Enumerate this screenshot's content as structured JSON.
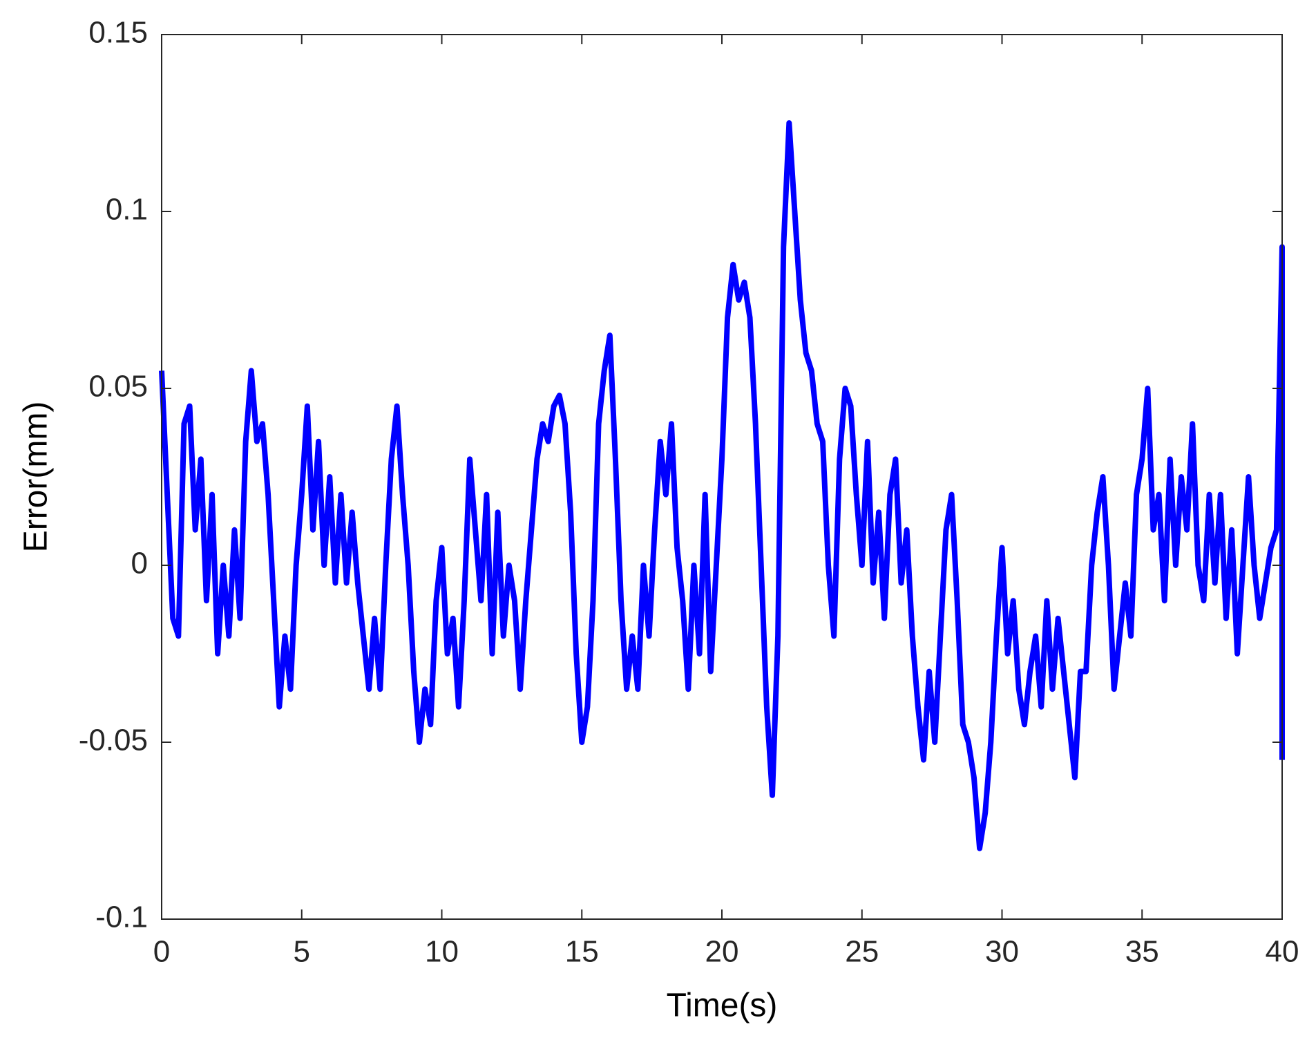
{
  "chart_data": {
    "type": "line",
    "xlabel": "Time(s)",
    "ylabel": "Error(mm)",
    "color": "#0000ff",
    "x": [
      0,
      0.2,
      0.4,
      0.6,
      0.8,
      1,
      1.2,
      1.4,
      1.6,
      1.8,
      2,
      2.2,
      2.4,
      2.6,
      2.8,
      3,
      3.2,
      3.4,
      3.6,
      3.8,
      4,
      4.2,
      4.4,
      4.6,
      4.8,
      5,
      5.2,
      5.4,
      5.6,
      5.8,
      6,
      6.2,
      6.4,
      6.6,
      6.8,
      7,
      7.2,
      7.4,
      7.6,
      7.8,
      8,
      8.2,
      8.4,
      8.6,
      8.8,
      9,
      9.2,
      9.4,
      9.6,
      9.8,
      10,
      10.2,
      10.4,
      10.6,
      10.8,
      11,
      11.2,
      11.4,
      11.6,
      11.8,
      12,
      12.2,
      12.4,
      12.6,
      12.8,
      13,
      13.2,
      13.4,
      13.6,
      13.8,
      14,
      14.2,
      14.4,
      14.6,
      14.8,
      15,
      15.2,
      15.4,
      15.6,
      15.8,
      16,
      16.2,
      16.4,
      16.6,
      16.8,
      17,
      17.2,
      17.4,
      17.6,
      17.8,
      18,
      18.2,
      18.4,
      18.6,
      18.8,
      19,
      19.2,
      19.4,
      19.6,
      19.8,
      20,
      20.2,
      20.4,
      20.6,
      20.8,
      21,
      21.2,
      21.4,
      21.6,
      21.8,
      22,
      22.2,
      22.4,
      22.6,
      22.8,
      23,
      23.2,
      23.4,
      23.6,
      23.8,
      24,
      24.2,
      24.4,
      24.6,
      24.8,
      25,
      25.2,
      25.4,
      25.6,
      25.8,
      26,
      26.2,
      26.4,
      26.6,
      26.8,
      27,
      27.2,
      27.4,
      27.6,
      27.8,
      28,
      28.2,
      28.4,
      28.6,
      28.8,
      29,
      29.2,
      29.4,
      29.6,
      29.8,
      30,
      30.2,
      30.4,
      30.6,
      30.8,
      31,
      31.2,
      31.4,
      31.6,
      31.8,
      32,
      32.2,
      32.4,
      32.6,
      32.8,
      33,
      33.2,
      33.4,
      33.6,
      33.8,
      34,
      34.2,
      34.4,
      34.6,
      34.8,
      35,
      35.2,
      35.4,
      35.6,
      35.8,
      36,
      36.2,
      36.4,
      36.6,
      36.8,
      37,
      37.2,
      37.4,
      37.6,
      37.8,
      38,
      38.2,
      38.4,
      38.6,
      38.8,
      39,
      39.2,
      39.4,
      39.6,
      39.8,
      40,
      40
    ],
    "values": [
      0.055,
      0.02,
      -0.015,
      -0.02,
      0.04,
      0.045,
      0.01,
      0.03,
      -0.01,
      0.02,
      -0.025,
      0,
      -0.02,
      0.01,
      -0.015,
      0.035,
      0.055,
      0.035,
      0.04,
      0.02,
      -0.01,
      -0.04,
      -0.02,
      -0.035,
      0,
      0.02,
      0.045,
      0.01,
      0.035,
      0,
      0.025,
      -0.005,
      0.02,
      -0.005,
      0.015,
      -0.005,
      -0.02,
      -0.035,
      -0.015,
      -0.035,
      0,
      0.03,
      0.045,
      0.02,
      0,
      -0.03,
      -0.05,
      -0.035,
      -0.045,
      -0.01,
      0.005,
      -0.025,
      -0.015,
      -0.04,
      -0.01,
      0.03,
      0.01,
      -0.01,
      0.02,
      -0.025,
      0.015,
      -0.02,
      0,
      -0.01,
      -0.035,
      -0.01,
      0.01,
      0.03,
      0.04,
      0.035,
      0.045,
      0.048,
      0.04,
      0.015,
      -0.025,
      -0.05,
      -0.04,
      -0.01,
      0.04,
      0.055,
      0.065,
      0.03,
      -0.01,
      -0.035,
      -0.02,
      -0.035,
      0,
      -0.02,
      0.01,
      0.035,
      0.02,
      0.04,
      0.005,
      -0.01,
      -0.035,
      0,
      -0.025,
      0.02,
      -0.03,
      0,
      0.03,
      0.07,
      0.085,
      0.075,
      0.08,
      0.07,
      0.04,
      0,
      -0.04,
      -0.065,
      -0.02,
      0.09,
      0.125,
      0.1,
      0.075,
      0.06,
      0.055,
      0.04,
      0.035,
      0,
      -0.02,
      0.03,
      0.05,
      0.045,
      0.02,
      0,
      0.035,
      -0.005,
      0.015,
      -0.015,
      0.02,
      0.03,
      -0.005,
      0.01,
      -0.02,
      -0.04,
      -0.055,
      -0.03,
      -0.05,
      -0.02,
      0.01,
      0.02,
      -0.01,
      -0.045,
      -0.05,
      -0.06,
      -0.08,
      -0.07,
      -0.05,
      -0.02,
      0.005,
      -0.025,
      -0.01,
      -0.035,
      -0.045,
      -0.03,
      -0.02,
      -0.04,
      -0.01,
      -0.035,
      -0.015,
      -0.03,
      -0.045,
      -0.06,
      -0.03,
      -0.03,
      0,
      0.015,
      0.025,
      0,
      -0.035,
      -0.02,
      -0.005,
      -0.02,
      0.02,
      0.03,
      0.05,
      0.01,
      0.02,
      -0.01,
      0.03,
      0,
      0.025,
      0.01,
      0.04,
      0,
      -0.01,
      0.02,
      -0.005,
      0.02,
      -0.015,
      0.01,
      -0.025,
      0,
      0.025,
      0,
      -0.015,
      -0.005,
      0.005,
      0.01,
      0.09,
      -0.055
    ],
    "xlim": [
      0,
      40
    ],
    "xticks": [
      0,
      5,
      10,
      15,
      20,
      25,
      30,
      35,
      40
    ],
    "ylim": [
      -0.1,
      0.15
    ],
    "yticks": [
      -0.1,
      -0.05,
      0,
      0.05,
      0.1,
      0.15
    ],
    "grid": false
  }
}
